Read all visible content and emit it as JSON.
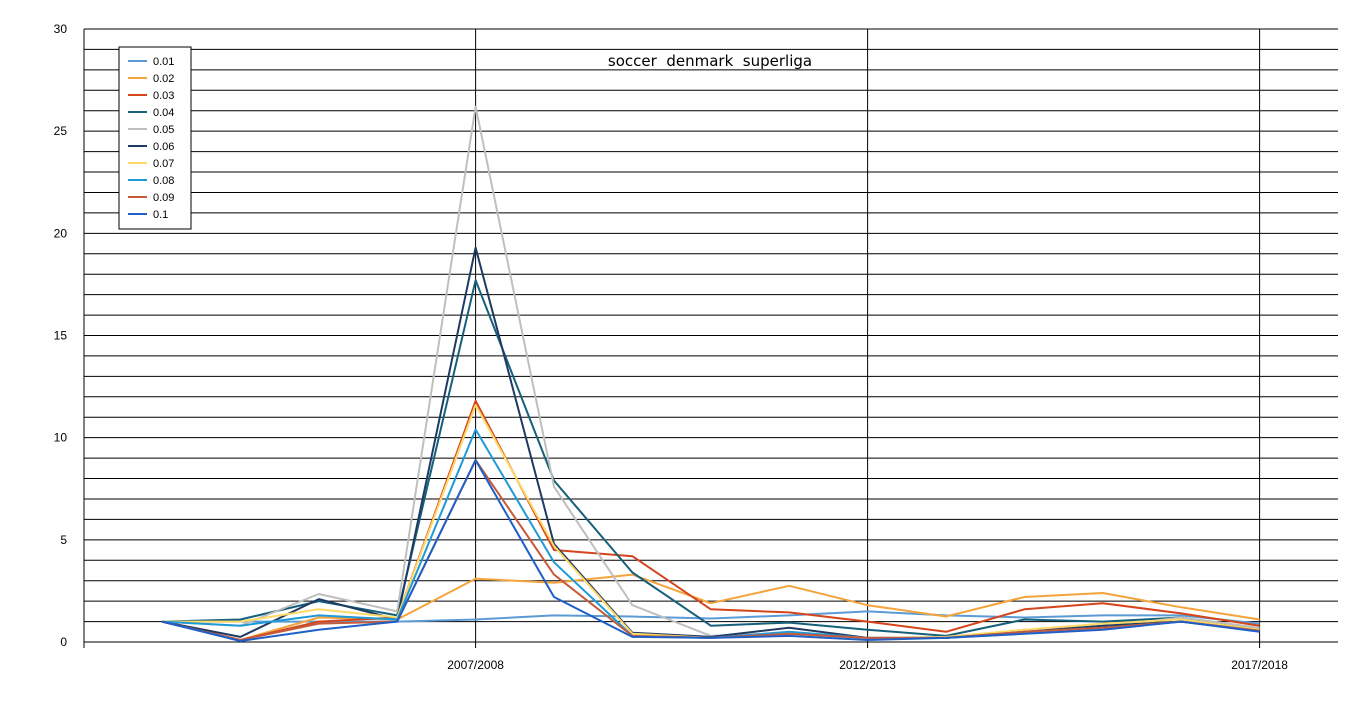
{
  "chart_data": {
    "type": "line",
    "title": "soccer  denmark  superliga",
    "xlabel": "",
    "ylabel": "",
    "ylim": [
      0,
      30
    ],
    "y_ticks": [
      0,
      5,
      10,
      15,
      20,
      25,
      30
    ],
    "x_tick_labels": [
      "2007/2008",
      "2012/2013",
      "2017/2018"
    ],
    "grid": true,
    "legend_position": "top-left",
    "series": [
      {
        "name": "0.01",
        "color": "#5b9bd5",
        "values": [
          1.0,
          1.0,
          1.0,
          1.0,
          1.1,
          1.3,
          1.25,
          1.15,
          1.3,
          1.5,
          1.3,
          1.2,
          1.3,
          1.3,
          0.9
        ]
      },
      {
        "name": "0.02",
        "color": "#f5a33b",
        "values": [
          1.0,
          0.1,
          1.2,
          1.1,
          3.1,
          2.9,
          3.3,
          1.9,
          2.75,
          1.8,
          1.25,
          2.2,
          2.4,
          1.7,
          1.1
        ]
      },
      {
        "name": "0.03",
        "color": "#d5451b",
        "values": [
          1.0,
          0.1,
          1.0,
          1.2,
          11.8,
          4.5,
          4.2,
          1.6,
          1.45,
          1.0,
          0.5,
          1.6,
          1.9,
          1.4,
          0.8
        ]
      },
      {
        "name": "0.04",
        "color": "#15607a",
        "values": [
          1.0,
          1.1,
          2.0,
          1.3,
          17.7,
          7.9,
          3.4,
          0.8,
          0.95,
          0.6,
          0.3,
          1.1,
          1.0,
          1.2,
          0.6
        ]
      },
      {
        "name": "0.05",
        "color": "#bfbfbf",
        "values": [
          1.0,
          0.8,
          2.35,
          1.5,
          26.2,
          7.6,
          1.8,
          0.3,
          0.45,
          0.2,
          0.2,
          0.6,
          0.75,
          1.2,
          0.7
        ]
      },
      {
        "name": "0.06",
        "color": "#1f3b63",
        "values": [
          1.0,
          0.25,
          2.1,
          1.1,
          19.3,
          4.8,
          0.45,
          0.25,
          0.7,
          0.2,
          0.2,
          0.5,
          0.8,
          1.0,
          0.55
        ]
      },
      {
        "name": "0.07",
        "color": "#ffd966",
        "values": [
          1.0,
          1.0,
          1.6,
          1.2,
          11.6,
          4.7,
          0.4,
          0.2,
          0.4,
          0.2,
          0.25,
          0.6,
          0.9,
          1.1,
          0.6
        ]
      },
      {
        "name": "0.08",
        "color": "#1e9ad6",
        "values": [
          1.0,
          0.8,
          1.3,
          1.1,
          10.4,
          3.9,
          0.3,
          0.2,
          0.5,
          0.2,
          0.2,
          0.5,
          0.7,
          1.0,
          0.55
        ]
      },
      {
        "name": "0.09",
        "color": "#c55a3c",
        "values": [
          1.0,
          0.1,
          0.9,
          1.0,
          8.9,
          3.3,
          0.3,
          0.2,
          0.4,
          0.2,
          0.2,
          0.5,
          0.7,
          1.0,
          0.55
        ]
      },
      {
        "name": "0.1",
        "color": "#1f5fc8",
        "values": [
          1.0,
          0.05,
          0.6,
          1.0,
          8.9,
          2.2,
          0.25,
          0.2,
          0.3,
          0.1,
          0.2,
          0.4,
          0.6,
          1.0,
          0.5
        ]
      }
    ]
  }
}
